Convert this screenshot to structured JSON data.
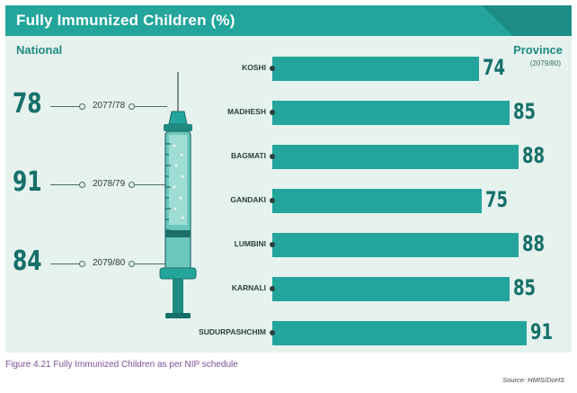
{
  "header": {
    "title": "Fully Immunized Children (%)"
  },
  "national_label": "National",
  "province_label": "Province",
  "province_period": "(2079/80)",
  "national": [
    {
      "value": "78",
      "year": "2077/78"
    },
    {
      "value": "91",
      "year": "2078/79"
    },
    {
      "value": "84",
      "year": "2079/80"
    }
  ],
  "caption": "Figure 4.21 Fully Immunized Children as per NIP schedule",
  "source": "Source: HMIS/DoHS",
  "colors": {
    "bar": "#23a59c",
    "header": "#23a59c",
    "panel": "#e6f2ee",
    "value_text": "#16706a"
  },
  "chart_data": {
    "type": "bar",
    "orientation": "horizontal",
    "categories": [
      "KOSHI",
      "MADHESH",
      "BAGMATI",
      "GANDAKI",
      "LUMBINI",
      "KARNALI",
      "SUDURPASHCHIM"
    ],
    "values": [
      74,
      85,
      88,
      75,
      88,
      85,
      91
    ],
    "value_labels": [
      "74",
      "85",
      "88",
      "75",
      "88",
      "85",
      "91"
    ],
    "xlim": [
      0,
      91
    ],
    "national_series": {
      "x": [
        "2077/78",
        "2078/79",
        "2079/80"
      ],
      "values": [
        78,
        91,
        84
      ]
    }
  }
}
